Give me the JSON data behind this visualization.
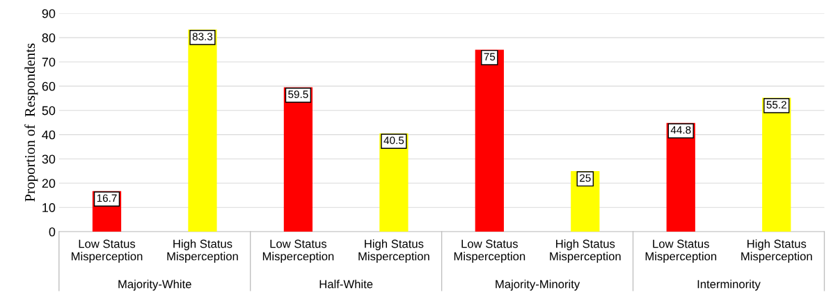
{
  "chart_data": {
    "type": "bar",
    "ylabel": "Proportion of  Respondents",
    "categories": [
      "Low Status\nMisperception",
      "High Status\nMisperception",
      "Low Status\nMisperception",
      "High Status\nMisperception",
      "Low Status\nMisperception",
      "High Status\nMisperception",
      "Low Status\nMisperception",
      "High Status\nMisperception"
    ],
    "values": [
      16.7,
      83.3,
      59.5,
      40.5,
      75,
      25,
      44.8,
      55.2
    ],
    "colors": [
      "#ff0000",
      "#ffff00",
      "#ff0000",
      "#ffff00",
      "#ff0000",
      "#ffff00",
      "#ff0000",
      "#ffff00"
    ],
    "annotations": [
      "Majority-White",
      "Half-White",
      "Majority-Minority",
      "Interminority"
    ],
    "ylim": [
      0,
      90
    ],
    "yticks": [
      0,
      10,
      20,
      30,
      40,
      50,
      60,
      70,
      80,
      90
    ],
    "grid": "y",
    "data_labels": true
  }
}
